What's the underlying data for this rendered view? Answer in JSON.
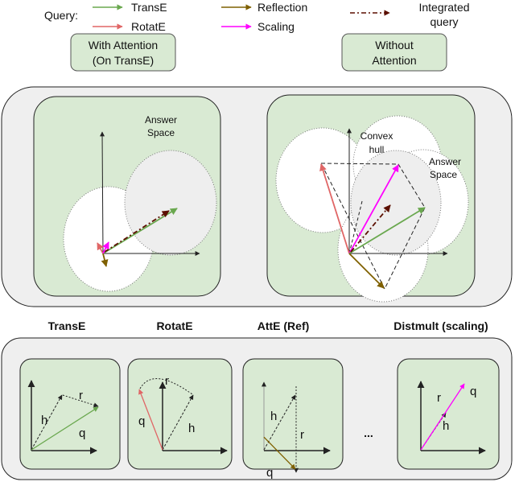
{
  "legend": {
    "title": "Query:",
    "items": [
      {
        "label": "TransE",
        "color": "#6aa84f"
      },
      {
        "label": "RotatE",
        "color": "#e06666"
      },
      {
        "label": "Reflection",
        "color": "#7f6000"
      },
      {
        "label": "Scaling",
        "color": "#ff00ff"
      }
    ],
    "integrated": {
      "line1": "Integrated",
      "line2": "query",
      "color": "#5b0f00"
    }
  },
  "modes": {
    "with_attention": {
      "line1": "With Attention",
      "line2": "(On TransE)"
    },
    "without_attention": {
      "line1": "Without",
      "line2": "Attention"
    }
  },
  "top_panels": {
    "left": {
      "answer_line1": "Answer",
      "answer_line2": "Space"
    },
    "right": {
      "hull_line1": "Convex",
      "hull_line2": "hull",
      "answer_line1": "Answer",
      "answer_line2": "Space"
    }
  },
  "bottom": {
    "titles": [
      "TransE",
      "RotatE",
      "AttE (Ref)",
      "Distmult (scaling)"
    ],
    "ellipsis": "...",
    "labels": {
      "h": "h",
      "r": "r",
      "q": "q"
    }
  },
  "colors": {
    "panel_green": "#d9ead3",
    "outer_gray": "#efefef",
    "answer_gray": "#eeeeee"
  }
}
